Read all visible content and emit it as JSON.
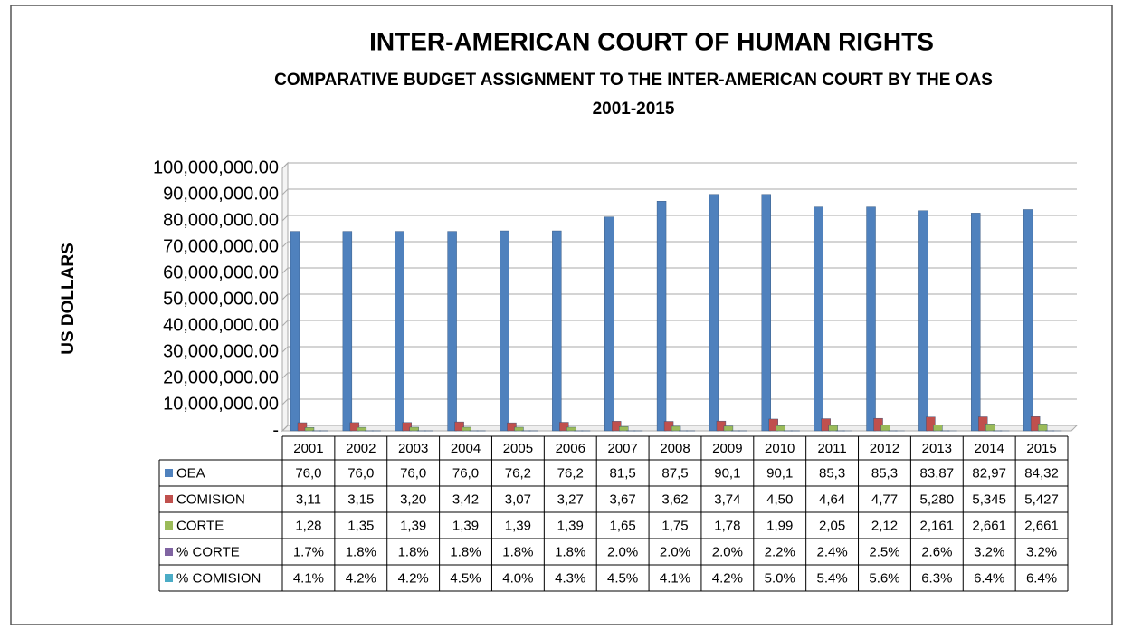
{
  "chart_data": {
    "type": "bar",
    "title": "INTER-AMERICAN COURT OF HUMAN RIGHTS",
    "subtitle": "COMPARATIVE BUDGET ASSIGNMENT TO THE INTER-AMERICAN COURT BY THE OAS",
    "period": "2001-2015",
    "y_label": "US  DOLLARS",
    "categories": [
      "2001",
      "2002",
      "2003",
      "2004",
      "2005",
      "2006",
      "2007",
      "2008",
      "2009",
      "2010",
      "2011",
      "2012",
      "2013",
      "2014",
      "2015"
    ],
    "ylim": [
      0,
      100000000
    ],
    "yticks": [
      {
        "value": 0,
        "label": "-"
      },
      {
        "value": 10000000,
        "label": "10,000,000.00"
      },
      {
        "value": 20000000,
        "label": "20,000,000.00"
      },
      {
        "value": 30000000,
        "label": "30,000,000.00"
      },
      {
        "value": 40000000,
        "label": "40,000,000.00"
      },
      {
        "value": 50000000,
        "label": "50,000,000.00"
      },
      {
        "value": 60000000,
        "label": "60,000,000.00"
      },
      {
        "value": 70000000,
        "label": "70,000,000.00"
      },
      {
        "value": 80000000,
        "label": "80,000,000.00"
      },
      {
        "value": 90000000,
        "label": "90,000,000.00"
      },
      {
        "value": 100000000,
        "label": "100,000,000.00"
      }
    ],
    "grid": true,
    "series": [
      {
        "name": "OEA",
        "color": "#4f81bd",
        "values": [
          76000000,
          76000000,
          76000000,
          76000000,
          76200000,
          76200000,
          81500000,
          87500000,
          90100000,
          90100000,
          85300000,
          85300000,
          83870000,
          82970000,
          84320000
        ],
        "value_labels": [
          "76,0",
          "76,0",
          "76,0",
          "76,0",
          "76,2",
          "76,2",
          "81,5",
          "87,5",
          "90,1",
          "90,1",
          "85,3",
          "85,3",
          "83,87",
          "82,97",
          "84,32"
        ]
      },
      {
        "name": "COMISION",
        "color": "#c0504d",
        "values": [
          3110000,
          3150000,
          3200000,
          3420000,
          3070000,
          3270000,
          3670000,
          3620000,
          3740000,
          4500000,
          4640000,
          4770000,
          5280000,
          5345000,
          5427000
        ],
        "value_labels": [
          "3,11",
          "3,15",
          "3,20",
          "3,42",
          "3,07",
          "3,27",
          "3,67",
          "3,62",
          "3,74",
          "4,50",
          "4,64",
          "4,77",
          "5,280",
          "5,345",
          "5,427"
        ]
      },
      {
        "name": "CORTE",
        "color": "#9bbb59",
        "values": [
          1280000,
          1350000,
          1390000,
          1390000,
          1390000,
          1390000,
          1650000,
          1750000,
          1780000,
          1990000,
          2050000,
          2120000,
          2161000,
          2661000,
          2661000
        ],
        "value_labels": [
          "1,28",
          "1,35",
          "1,39",
          "1,39",
          "1,39",
          "1,39",
          "1,65",
          "1,75",
          "1,78",
          "1,99",
          "2,05",
          "2,12",
          "2,161",
          "2,661",
          "2,661"
        ]
      },
      {
        "name": "% CORTE",
        "color": "#8064a2",
        "values": [
          1.7,
          1.8,
          1.8,
          1.8,
          1.8,
          1.8,
          2.0,
          2.0,
          2.0,
          2.2,
          2.4,
          2.5,
          2.6,
          3.2,
          3.2
        ],
        "value_labels": [
          "1.7%",
          "1.8%",
          "1.8%",
          "1.8%",
          "1.8%",
          "1.8%",
          "2.0%",
          "2.0%",
          "2.0%",
          "2.2%",
          "2.4%",
          "2.5%",
          "2.6%",
          "3.2%",
          "3.2%"
        ]
      },
      {
        "name": "% COMISION",
        "color": "#4bacc6",
        "values": [
          4.1,
          4.2,
          4.2,
          4.5,
          4.0,
          4.3,
          4.5,
          4.1,
          4.2,
          5.0,
          5.4,
          5.6,
          6.3,
          6.4,
          6.4
        ],
        "value_labels": [
          "4.1%",
          "4.2%",
          "4.2%",
          "4.5%",
          "4.0%",
          "4.3%",
          "4.5%",
          "4.1%",
          "4.2%",
          "5.0%",
          "5.4%",
          "5.6%",
          "6.3%",
          "6.4%",
          "6.4%"
        ]
      }
    ]
  }
}
